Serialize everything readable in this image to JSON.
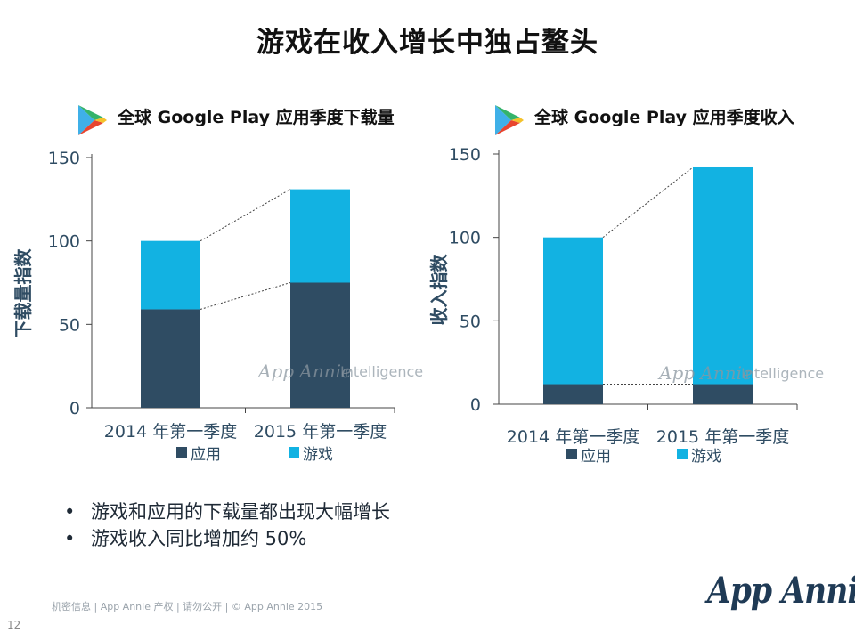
{
  "title": "游戏在收入增长中独占鳌头",
  "colors": {
    "apps": "#2f4c63",
    "games": "#12b2e2",
    "axis": "#2f4c63",
    "text": "#2f4c63"
  },
  "icons": {
    "play_store": "play-store-icon"
  },
  "watermark": {
    "brand": "App Annie",
    "suffix": "Intelligence"
  },
  "chart_data": [
    {
      "type": "bar",
      "stacked": true,
      "title": "全球 Google Play 应用季度下载量",
      "ylabel": "下载量指数",
      "xlabel": "",
      "categories": [
        "2014 年第一季度",
        "2015 年第一季度"
      ],
      "ylim": [
        0,
        150
      ],
      "yticks": [
        0,
        50,
        100,
        150
      ],
      "series": [
        {
          "name": "应用",
          "values": [
            59,
            75
          ]
        },
        {
          "name": "游戏",
          "values": [
            41,
            56
          ]
        }
      ],
      "legend": [
        "应用",
        "游戏"
      ]
    },
    {
      "type": "bar",
      "stacked": true,
      "title": "全球 Google Play 应用季度收入",
      "ylabel": "收入指数",
      "xlabel": "",
      "categories": [
        "2014 年第一季度",
        "2015 年第一季度"
      ],
      "ylim": [
        0,
        150
      ],
      "yticks": [
        0,
        50,
        100,
        150
      ],
      "series": [
        {
          "name": "应用",
          "values": [
            12,
            12
          ]
        },
        {
          "name": "游戏",
          "values": [
            88,
            130
          ]
        }
      ],
      "legend": [
        "应用",
        "游戏"
      ]
    }
  ],
  "bullets": [
    "游戏和应用的下载量都出现大幅增长",
    "游戏收入同比增加约 50%"
  ],
  "footer": "机密信息 | App Annie 产权 | 请勿公开 | © App Annie 2015",
  "page_number": "12",
  "logo": "App Annie"
}
